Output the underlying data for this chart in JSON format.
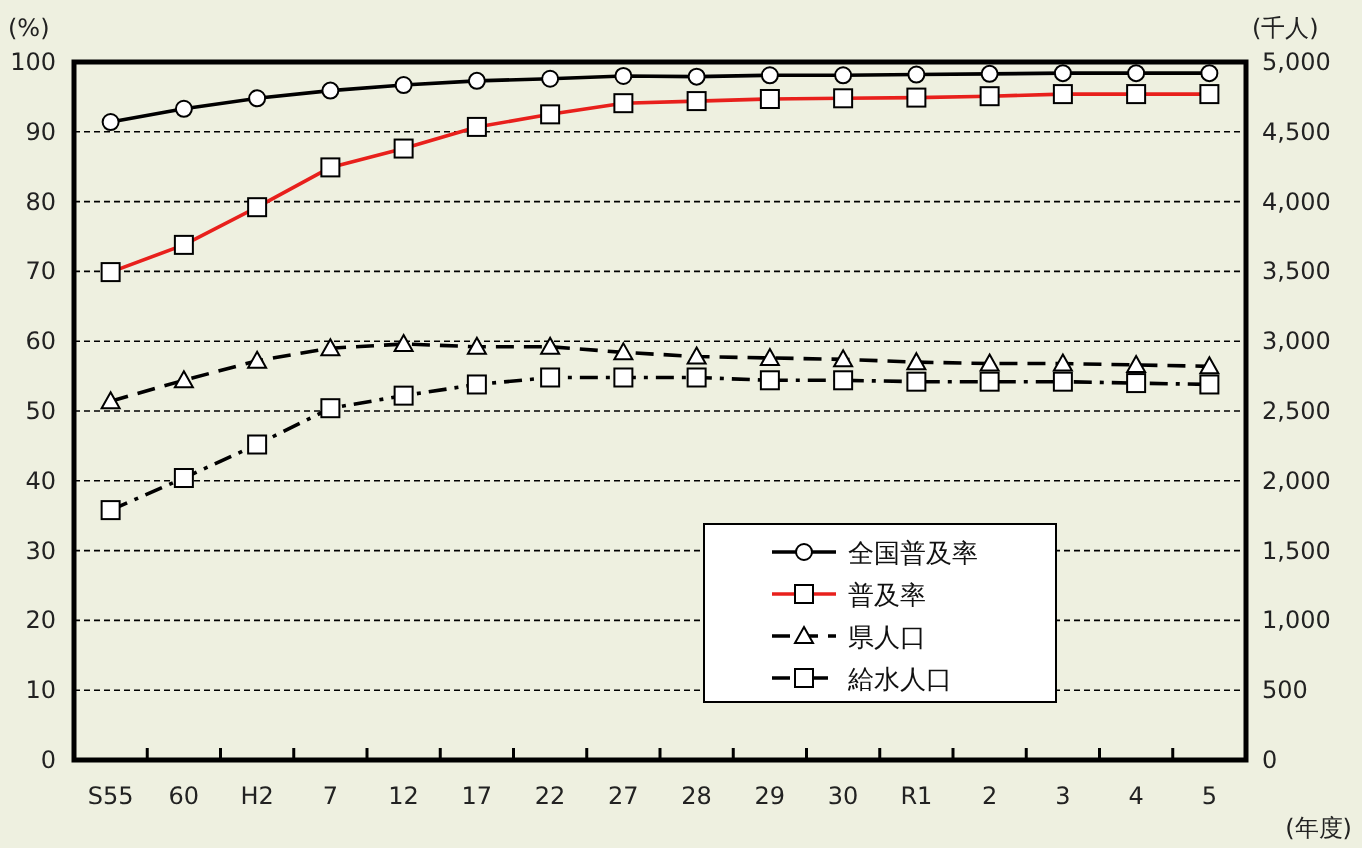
{
  "chart_data": {
    "type": "line",
    "categories": [
      "S55",
      "60",
      "H2",
      "7",
      "12",
      "17",
      "22",
      "27",
      "28",
      "29",
      "30",
      "R1",
      "2",
      "3",
      "4",
      "5"
    ],
    "xlabel": "(年度)",
    "ylabel": "(%)",
    "y2label": "(千人)",
    "ylim": [
      0,
      100
    ],
    "yticks": [
      0,
      10,
      20,
      30,
      40,
      50,
      60,
      70,
      80,
      90,
      100
    ],
    "y2lim": [
      0,
      5000
    ],
    "y2ticks": [
      0,
      500,
      {
        "value": 1000,
        "label": "1,000"
      },
      {
        "value": 1500,
        "label": "1,500"
      },
      {
        "value": 2000,
        "label": "2,000"
      },
      {
        "value": 2500,
        "label": "2,500"
      },
      {
        "value": 3000,
        "label": "3,000"
      },
      {
        "value": 3500,
        "label": "3,500"
      },
      {
        "value": 4000,
        "label": "4,000"
      },
      {
        "value": 4500,
        "label": "4,500"
      },
      {
        "value": 5000,
        "label": "5,000"
      }
    ],
    "grid": "y",
    "legend": "bottom right",
    "series": [
      {
        "name": "全国普及率",
        "color": "#000000",
        "marker": "circle",
        "line_style": "solid",
        "values": [
          91.4,
          93.3,
          94.8,
          95.9,
          96.7,
          97.3,
          97.6,
          98.0,
          97.9,
          98.1,
          98.1,
          98.2,
          98.3,
          98.4,
          98.4,
          98.4
        ]
      },
      {
        "name": "普及率",
        "color": "#e8201c",
        "marker": "square",
        "line_style": "solid",
        "values": [
          69.9,
          73.8,
          79.2,
          84.9,
          87.6,
          90.7,
          92.5,
          94.1,
          94.4,
          94.7,
          94.8,
          94.9,
          95.1,
          95.4,
          95.4,
          95.4
        ]
      },
      {
        "name": "県人口",
        "color": "#000000",
        "marker": "triangle",
        "line_style": "dashed",
        "axis": "y2",
        "values": [
          2570,
          2720,
          2860,
          2950,
          2980,
          2960,
          2960,
          2920,
          2890,
          2880,
          2870,
          2850,
          2840,
          2840,
          2830,
          2820
        ]
      },
      {
        "name": "給水人口",
        "color": "#000000",
        "marker": "square",
        "line_style": "dashdot",
        "axis": "y2",
        "values": [
          1790,
          2020,
          2260,
          2520,
          2610,
          2690,
          2740,
          2740,
          2740,
          2720,
          2720,
          2710,
          2710,
          2710,
          2700,
          2690
        ]
      }
    ]
  }
}
